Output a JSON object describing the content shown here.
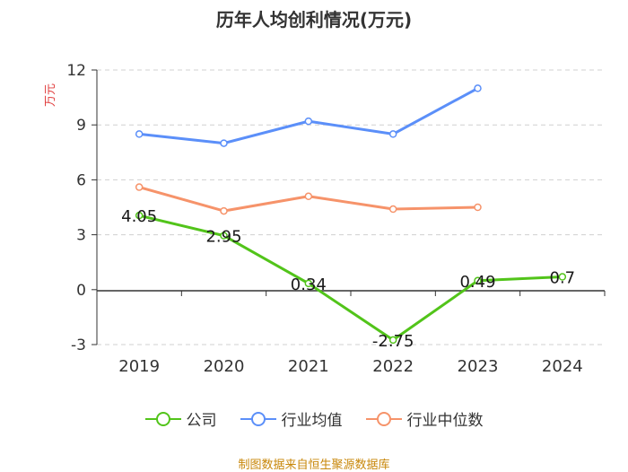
{
  "chart_data": {
    "type": "line",
    "title": "历年人均创利情况(万元)",
    "ylabel": "万元",
    "xlabel": "",
    "categories": [
      "2019",
      "2020",
      "2021",
      "2022",
      "2023",
      "2024"
    ],
    "ylim": [
      -3,
      12
    ],
    "yticks": [
      "-3",
      "0",
      "3",
      "6",
      "9",
      "12"
    ],
    "grid": "horizontal dashed",
    "legend_position": "bottom",
    "series": [
      {
        "name": "公司",
        "color": "#52c41a",
        "values": [
          4.05,
          2.95,
          0.34,
          -2.75,
          0.49,
          0.7
        ],
        "labels": [
          "4.05",
          "2.95",
          "0.34",
          "-2.75",
          "0.49",
          "0.7"
        ]
      },
      {
        "name": "行业均值",
        "color": "#5b8ff9",
        "values": [
          8.5,
          8.0,
          9.2,
          8.5,
          11.0,
          null
        ]
      },
      {
        "name": "行业中位数",
        "color": "#f6936a",
        "values": [
          5.6,
          4.3,
          5.1,
          4.4,
          4.5,
          null
        ]
      }
    ]
  },
  "source": "制图数据来自恒生聚源数据库"
}
